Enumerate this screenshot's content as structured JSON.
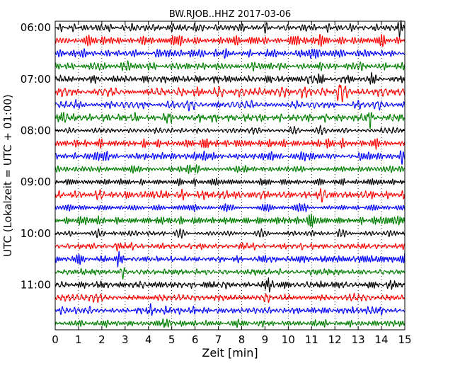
{
  "chart_data": {
    "type": "line",
    "title": "BW.RJOB..HHZ 2017-03-06",
    "xlabel": "Zeit  [min]",
    "ylabel": "UTC (Lokalzeit = UTC + 01:00)",
    "xlim": [
      0,
      15
    ],
    "x_ticks": [
      "0",
      "1",
      "2",
      "3",
      "4",
      "5",
      "6",
      "7",
      "8",
      "9",
      "10",
      "11",
      "12",
      "13",
      "14",
      "15"
    ],
    "y_ticks": [
      "06:00",
      "07:00",
      "08:00",
      "09:00",
      "10:00",
      "11:00"
    ],
    "grid": true,
    "trace_start_times": [
      "06:00",
      "06:15",
      "06:30",
      "06:45",
      "07:00",
      "07:15",
      "07:30",
      "07:45",
      "08:00",
      "08:15",
      "08:30",
      "08:45",
      "09:00",
      "09:15",
      "09:30",
      "09:45",
      "10:00",
      "10:15",
      "10:30",
      "10:45",
      "11:00",
      "11:15",
      "11:30",
      "11:45"
    ],
    "trace_colors": [
      "#000000",
      "#ff0000",
      "#0000ff",
      "#008000"
    ],
    "series": [
      {
        "start": "06:00",
        "peaks": [
          {
            "t": 3.3,
            "a": 0.6
          },
          {
            "t": 6.1,
            "a": 0.5
          },
          {
            "t": 14.8,
            "a": 0.7
          }
        ]
      },
      {
        "start": "06:15",
        "peaks": [
          {
            "t": 6.3,
            "a": 0.6
          },
          {
            "t": 11.3,
            "a": 0.5
          }
        ]
      },
      {
        "start": "06:30",
        "peaks": [
          {
            "t": 11.1,
            "a": 0.6
          }
        ]
      },
      {
        "start": "06:45",
        "peaks": [
          {
            "t": 3.1,
            "a": 0.7
          },
          {
            "t": 13.1,
            "a": 0.5
          }
        ]
      },
      {
        "start": "07:00",
        "peaks": [
          {
            "t": 10.9,
            "a": 0.6
          }
        ]
      },
      {
        "start": "07:15",
        "peaks": [
          {
            "t": 6.0,
            "a": 0.6
          },
          {
            "t": 12.2,
            "a": 0.6
          }
        ]
      },
      {
        "start": "07:30",
        "peaks": [
          {
            "t": 0.9,
            "a": 0.6
          }
        ]
      },
      {
        "start": "07:45",
        "peaks": [
          {
            "t": 0.3,
            "a": 0.8
          },
          {
            "t": 13.5,
            "a": 0.7
          }
        ]
      },
      {
        "start": "08:00",
        "peaks": [
          {
            "t": 10.1,
            "a": 0.6
          }
        ]
      },
      {
        "start": "08:15",
        "peaks": [
          {
            "t": 6.5,
            "a": 0.8
          },
          {
            "t": 12.4,
            "a": 0.6
          }
        ]
      },
      {
        "start": "08:30",
        "peaks": [
          {
            "t": 14.9,
            "a": 0.8
          }
        ]
      },
      {
        "start": "08:45",
        "peaks": [
          {
            "t": 3.4,
            "a": 0.8
          },
          {
            "t": 10.5,
            "a": 0.6
          }
        ]
      },
      {
        "start": "09:00",
        "peaks": [
          {
            "t": 6.0,
            "a": 0.7
          }
        ]
      },
      {
        "start": "09:15",
        "peaks": [
          {
            "t": 7.4,
            "a": 0.6
          },
          {
            "t": 11.5,
            "a": 0.7
          }
        ]
      },
      {
        "start": "09:30",
        "peaks": [
          {
            "t": 10.8,
            "a": 0.8
          }
        ]
      },
      {
        "start": "09:45",
        "peaks": [
          {
            "t": 11.0,
            "a": 0.8
          },
          {
            "t": 14.8,
            "a": 0.7
          }
        ]
      },
      {
        "start": "10:00",
        "peaks": [
          {
            "t": 4.6,
            "a": 0.6
          }
        ]
      },
      {
        "start": "10:15",
        "peaks": [
          {
            "t": 2.6,
            "a": 0.5
          }
        ]
      },
      {
        "start": "10:30",
        "peaks": [
          {
            "t": 2.7,
            "a": 0.6
          }
        ]
      },
      {
        "start": "10:45",
        "peaks": [
          {
            "t": 2.9,
            "a": 0.8
          },
          {
            "t": 11.1,
            "a": 0.7
          }
        ]
      },
      {
        "start": "11:00",
        "peaks": [
          {
            "t": 9.2,
            "a": 0.7
          }
        ]
      },
      {
        "start": "11:15",
        "peaks": [
          {
            "t": 9.1,
            "a": 0.7
          }
        ]
      },
      {
        "start": "11:30",
        "peaks": [
          {
            "t": 4.0,
            "a": 0.6
          }
        ]
      },
      {
        "start": "11:45",
        "peaks": [
          {
            "t": 4.7,
            "a": 0.8
          }
        ]
      }
    ]
  }
}
